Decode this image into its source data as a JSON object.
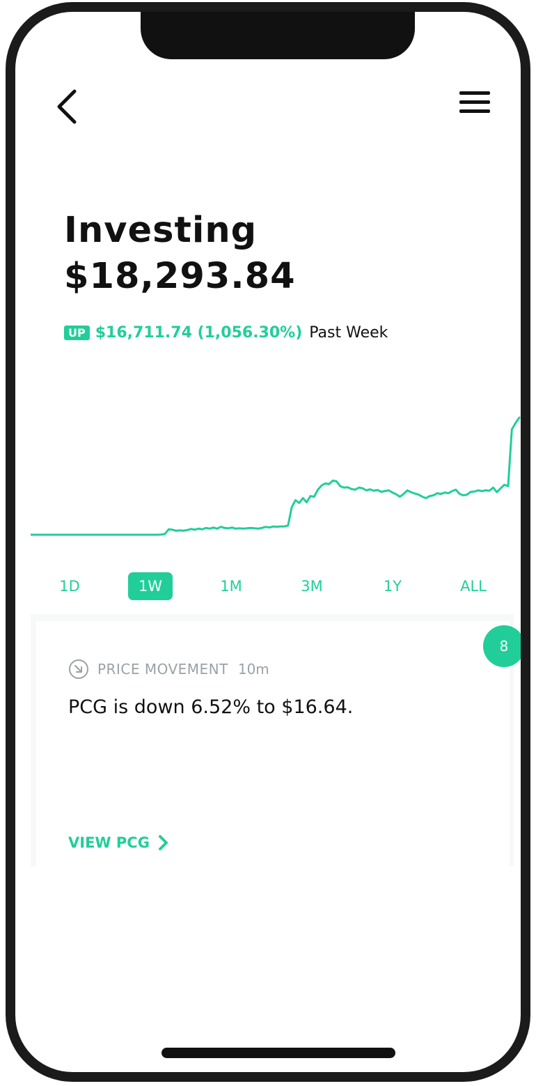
{
  "header": {
    "back_icon": "chevron-left-icon",
    "menu_icon": "hamburger-menu-icon"
  },
  "portfolio": {
    "title": "Investing",
    "balance": "$18,293.84",
    "change_badge": "UP",
    "change_value": "$16,711.74 (1,056.30%)",
    "change_period": "Past Week"
  },
  "colors": {
    "accent": "#21ce99",
    "text": "#111111",
    "muted": "#9aa1a6"
  },
  "chart_data": {
    "type": "line",
    "title": "",
    "xlabel": "",
    "ylabel": "",
    "grid": false,
    "color": "#21ce99",
    "values": [
      1582,
      1582,
      1582,
      1582,
      1582,
      1582,
      1582,
      1582,
      1582,
      1582,
      1582,
      1582,
      1582,
      1582,
      1582,
      1582,
      1582,
      1582,
      1582,
      1582,
      1582,
      1582,
      1582,
      1582,
      1582,
      1582,
      1582,
      1582,
      1582,
      1582,
      1582,
      1582,
      1582,
      1582,
      1582,
      1600,
      1680,
      2350,
      2300,
      2150,
      2200,
      2150,
      2250,
      2400,
      2300,
      2450,
      2350,
      2550,
      2450,
      2600,
      2450,
      2700,
      2550,
      2500,
      2600,
      2450,
      2500,
      2450,
      2500,
      2550,
      2500,
      2450,
      2550,
      2700,
      2600,
      2750,
      2700,
      2750,
      2750,
      2900,
      5500,
      6500,
      6100,
      6800,
      6200,
      7100,
      7000,
      8000,
      8600,
      8900,
      8800,
      9300,
      9200,
      8500,
      8300,
      8350,
      8100,
      8000,
      8300,
      8200,
      7900,
      8050,
      7850,
      7950,
      7700,
      7800,
      7900,
      7600,
      7350,
      7000,
      7400,
      7900,
      7650,
      7450,
      7300,
      7000,
      6800,
      7100,
      7200,
      7500,
      7400,
      7600,
      7500,
      7800,
      8000,
      7400,
      7200,
      7300,
      7700,
      7750,
      7900,
      7800,
      7900,
      7850,
      8300,
      7650,
      8200,
      8700,
      8500,
      16600,
      17500,
      18293.84
    ],
    "ranges": [
      "1D",
      "1W",
      "1M",
      "3M",
      "1Y",
      "ALL"
    ],
    "selected_range": "1W"
  },
  "notification": {
    "count": "8",
    "icon": "arrow-down-right-circle-icon",
    "label": "PRICE MOVEMENT",
    "time": "10m",
    "text": "PCG is down 6.52% to $16.64.",
    "link_label": "VIEW PCG",
    "link_icon": "chevron-right-icon"
  }
}
